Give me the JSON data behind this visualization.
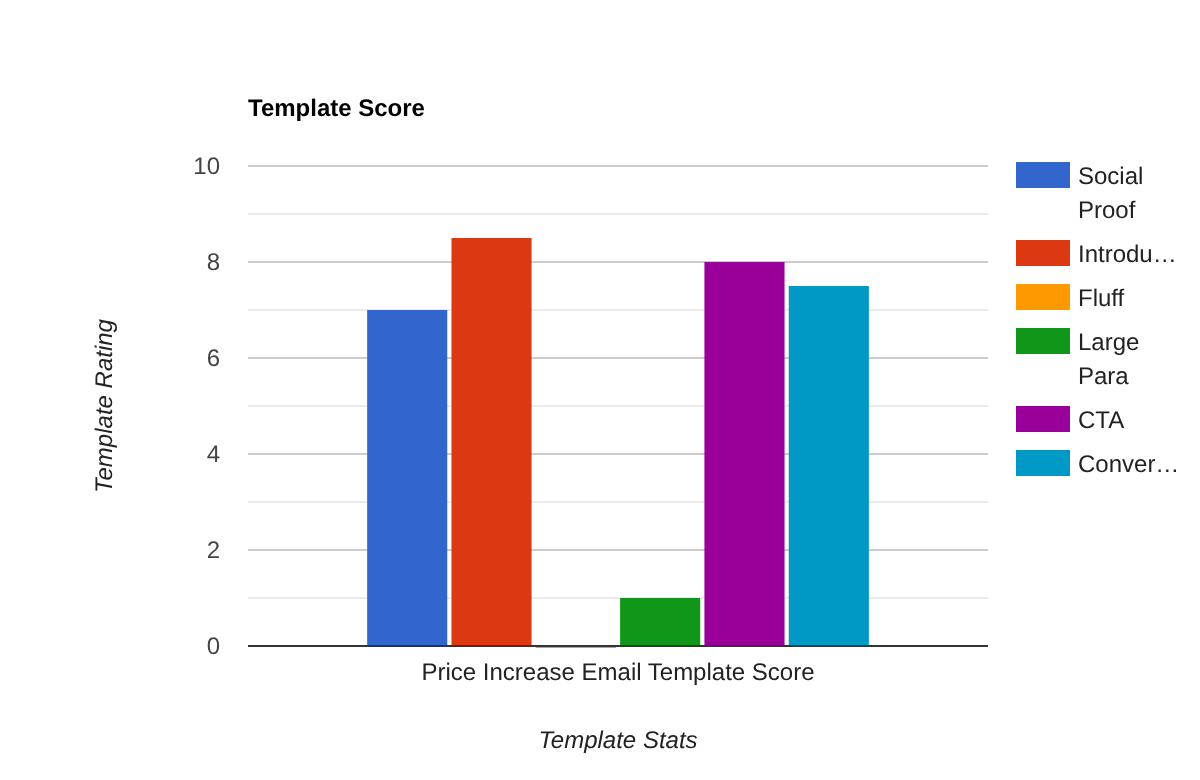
{
  "chart_data": {
    "type": "bar",
    "title": "Template Score",
    "xlabel": "Template Stats",
    "ylabel": "Template Rating",
    "categories": [
      "Price Increase Email Template Score"
    ],
    "series": [
      {
        "name": "Social Proof",
        "color": "#3366cc",
        "values": [
          7
        ]
      },
      {
        "name": "Introdu…",
        "color": "#dc3912",
        "values": [
          8.5
        ]
      },
      {
        "name": "Fluff",
        "color": "#ff9900",
        "values": [
          0
        ]
      },
      {
        "name": "Large Para",
        "color": "#109618",
        "values": [
          1
        ]
      },
      {
        "name": "CTA",
        "color": "#990099",
        "values": [
          8
        ]
      },
      {
        "name": "Conver…",
        "color": "#0099c6",
        "values": [
          7.5
        ]
      }
    ],
    "ylim": [
      0,
      10
    ],
    "yticks": [
      0,
      {
        "value": 1,
        "label": null
      },
      2,
      {
        "value": 3,
        "label": null
      },
      4,
      {
        "value": 5,
        "label": null
      },
      6,
      {
        "value": 7,
        "label": null
      },
      8,
      {
        "value": 9,
        "label": null
      },
      10
    ],
    "grid": true,
    "legend": "right"
  }
}
